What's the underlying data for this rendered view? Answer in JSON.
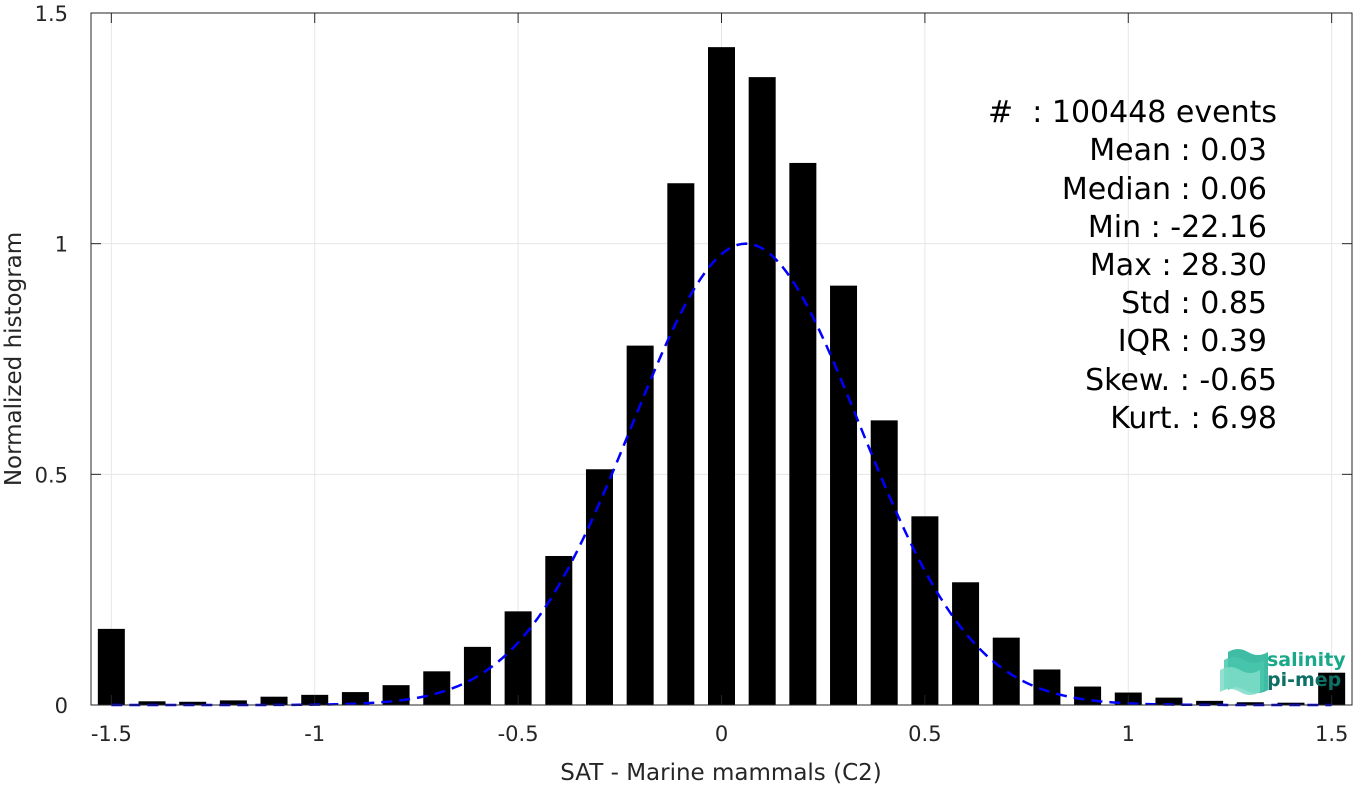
{
  "chart_data": {
    "type": "bar",
    "xlabel": "SAT - Marine mammals (C2)",
    "ylabel": "Normalized histogram",
    "xlim": [
      -1.55,
      1.55
    ],
    "ylim": [
      0,
      1.5
    ],
    "xticks": [
      -1.5,
      -1,
      -0.5,
      0,
      0.5,
      1,
      1.5
    ],
    "xtick_labels": [
      "-1.5",
      "-1",
      "-0.5",
      "0",
      "0.5",
      "1",
      "1.5"
    ],
    "yticks": [
      0,
      0.5,
      1,
      1.5
    ],
    "ytick_labels": [
      "0",
      "0.5",
      "1",
      "1.5"
    ],
    "grid": true,
    "bar_color": "#000000",
    "curve_color": "#0000ff",
    "bin_width": 0.1,
    "x": [
      -1.5,
      -1.4,
      -1.3,
      -1.2,
      -1.1,
      -1.0,
      -0.9,
      -0.8,
      -0.7,
      -0.6,
      -0.5,
      -0.4,
      -0.3,
      -0.2,
      -0.1,
      0.0,
      0.1,
      0.2,
      0.3,
      0.4,
      0.5,
      0.6,
      0.7,
      0.8,
      0.9,
      1.0,
      1.1,
      1.2,
      1.3,
      1.4,
      1.5
    ],
    "values": [
      0.165,
      0.008,
      0.007,
      0.01,
      0.018,
      0.022,
      0.028,
      0.043,
      0.073,
      0.126,
      0.203,
      0.323,
      0.511,
      0.779,
      1.131,
      1.426,
      1.361,
      1.175,
      0.909,
      0.617,
      0.409,
      0.266,
      0.146,
      0.077,
      0.04,
      0.027,
      0.016,
      0.009,
      0.006,
      0.005,
      0.07
    ],
    "fit_curve": {
      "type": "gaussian",
      "mean": 0.06,
      "std": 0.28,
      "peak": 1.0
    },
    "stats": [
      {
        "label": "#  : 100448 events"
      },
      {
        "label": "Mean : 0.03"
      },
      {
        "label": "Median : 0.06"
      },
      {
        "label": "Min : -22.16"
      },
      {
        "label": "Max : 28.30"
      },
      {
        "label": "Std : 0.85"
      },
      {
        "label": "IQR : 0.39"
      },
      {
        "label": "Skew. : -0.65"
      },
      {
        "label": "Kurt. : 6.98"
      }
    ]
  },
  "logo": {
    "line1": "salinity",
    "line2": "pi-mep",
    "color1": "#1aa88a",
    "color2": "#0d6f66"
  }
}
